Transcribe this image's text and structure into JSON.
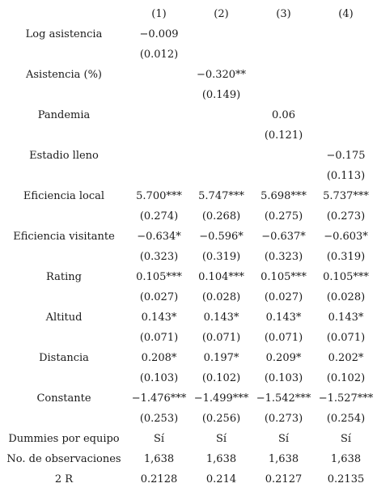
{
  "table": {
    "headers": [
      "(1)",
      "(2)",
      "(3)",
      "(4)"
    ],
    "rows": [
      {
        "label": "Log asistencia",
        "cells": [
          "−0.009",
          "",
          "",
          ""
        ]
      },
      {
        "label": "",
        "cells": [
          "(0.012)",
          "",
          "",
          ""
        ]
      },
      {
        "label": "Asistencia (%)",
        "cells": [
          "",
          "−0.320**",
          "",
          ""
        ]
      },
      {
        "label": "",
        "cells": [
          "",
          "(0.149)",
          "",
          ""
        ]
      },
      {
        "label": "Pandemia",
        "cells": [
          "",
          "",
          "0.06",
          ""
        ]
      },
      {
        "label": "",
        "cells": [
          "",
          "",
          "(0.121)",
          ""
        ]
      },
      {
        "label": "Estadio lleno",
        "cells": [
          "",
          "",
          "",
          "−0.175"
        ]
      },
      {
        "label": "",
        "cells": [
          "",
          "",
          "",
          "(0.113)"
        ]
      },
      {
        "label": "Eficiencia local",
        "cells": [
          "5.700***",
          "5.747***",
          "5.698***",
          "5.737***"
        ]
      },
      {
        "label": "",
        "cells": [
          "(0.274)",
          "(0.268)",
          "(0.275)",
          "(0.273)"
        ]
      },
      {
        "label": "Eficiencia visitante",
        "cells": [
          "−0.634*",
          "−0.596*",
          "−0.637*",
          "−0.603*"
        ]
      },
      {
        "label": "",
        "cells": [
          "(0.323)",
          "(0.319)",
          "(0.323)",
          "(0.319)"
        ]
      },
      {
        "label": "Rating",
        "cells": [
          "0.105***",
          "0.104***",
          "0.105***",
          "0.105***"
        ]
      },
      {
        "label": "",
        "cells": [
          "(0.027)",
          "(0.028)",
          "(0.027)",
          "(0.028)"
        ]
      },
      {
        "label": "Altitud",
        "cells": [
          "0.143*",
          "0.143*",
          "0.143*",
          "0.143*"
        ]
      },
      {
        "label": "",
        "cells": [
          "(0.071)",
          "(0.071)",
          "(0.071)",
          "(0.071)"
        ]
      },
      {
        "label": "Distancia",
        "cells": [
          "0.208*",
          "0.197*",
          "0.209*",
          "0.202*"
        ]
      },
      {
        "label": "",
        "cells": [
          "(0.103)",
          "(0.102)",
          "(0.103)",
          "(0.102)"
        ]
      },
      {
        "label": "Constante",
        "cells": [
          "−1.476***",
          "−1.499***",
          "−1.542***",
          "−1.527***"
        ]
      },
      {
        "label": "",
        "cells": [
          "(0.253)",
          "(0.256)",
          "(0.273)",
          "(0.254)"
        ]
      },
      {
        "label": "Dummies por equipo",
        "cells": [
          "Sí",
          "Sí",
          "Sí",
          "Sí"
        ]
      },
      {
        "label": "No. de observaciones",
        "cells": [
          "1,638",
          "1,638",
          "1,638",
          "1,638"
        ]
      },
      {
        "label": "2 R",
        "cells": [
          "0.2128",
          "0.214",
          "0.2127",
          "0.2135"
        ]
      }
    ]
  }
}
